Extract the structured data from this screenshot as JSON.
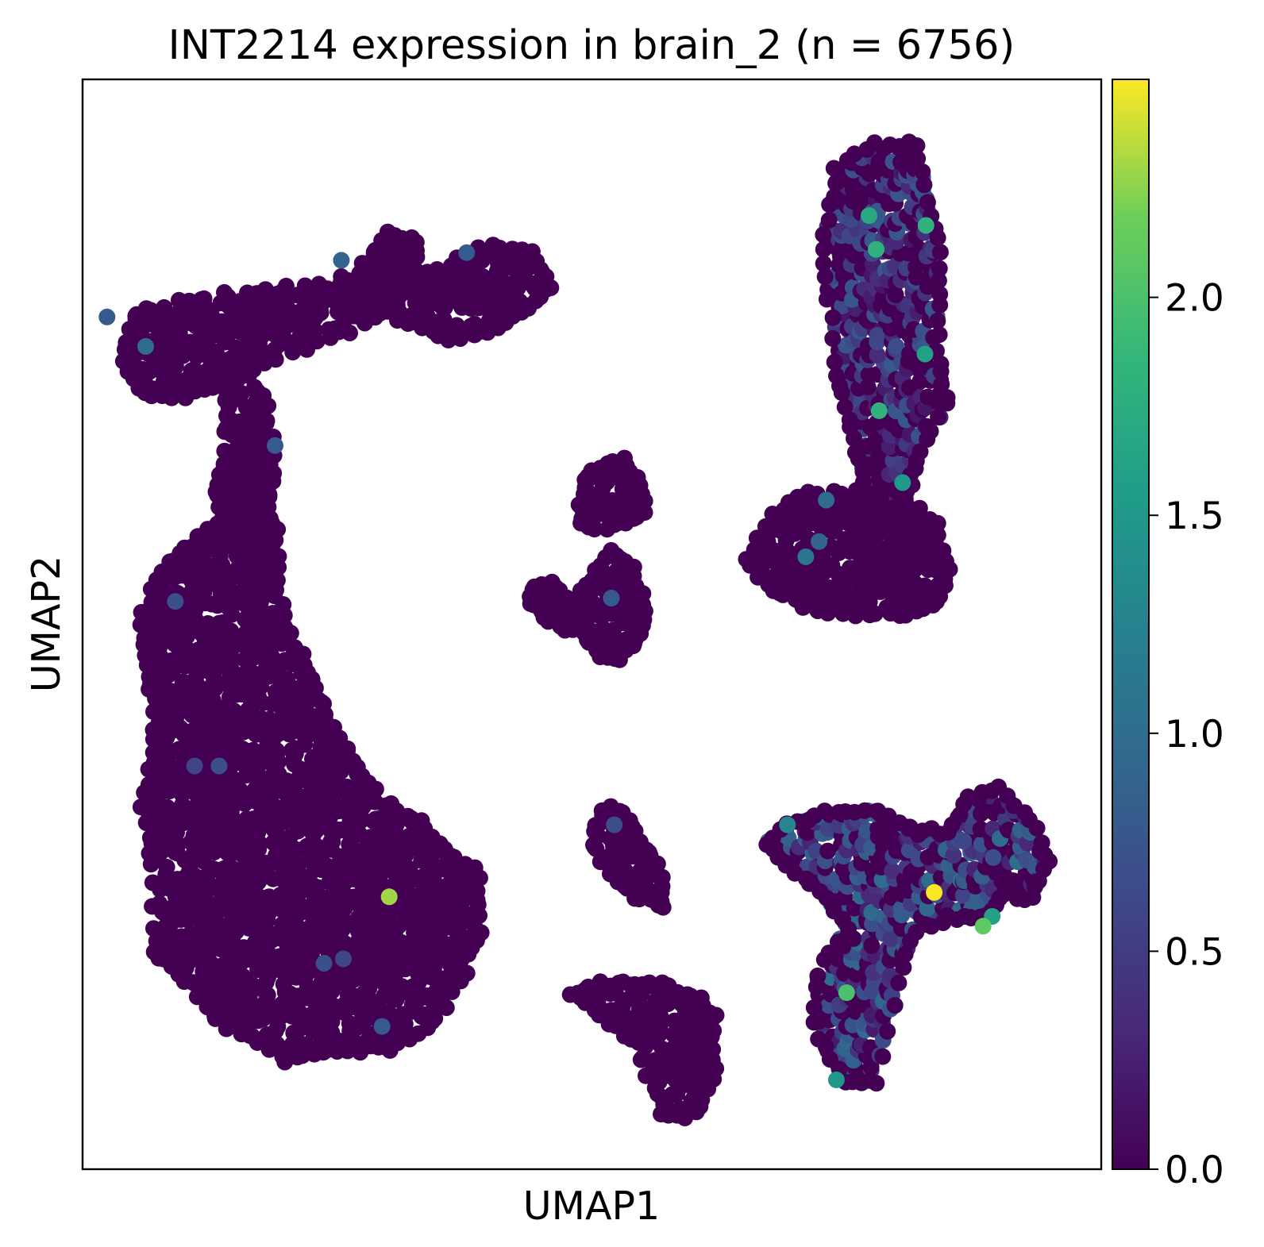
{
  "chart_data": {
    "type": "scatter",
    "title": "INT2214 expression in brain_2 (n = 6756)",
    "xlabel": "UMAP1",
    "ylabel": "UMAP2",
    "x_ticks_shown": false,
    "y_ticks_shown": false,
    "grid": false,
    "colormap": "viridis",
    "colorbar": {
      "min": 0.0,
      "max": 2.5,
      "ticks": [
        0.0,
        0.5,
        1.0,
        1.5,
        2.0
      ],
      "tick_labels": [
        "0.0",
        "0.5",
        "1.0",
        "1.5",
        "2.0"
      ],
      "placement": "right"
    },
    "xlim": [
      0,
      100
    ],
    "ylim": [
      0,
      100
    ],
    "point_color_zero": "#440154",
    "clusters": [
      {
        "id": "left-crescent",
        "outline": [
          [
            7,
            20
          ],
          [
            10,
            17
          ],
          [
            14,
            13
          ],
          [
            20,
            10
          ],
          [
            25,
            11
          ],
          [
            30,
            11
          ],
          [
            34,
            13
          ],
          [
            37,
            17
          ],
          [
            39,
            22
          ],
          [
            39,
            27
          ],
          [
            36,
            29
          ],
          [
            33,
            32
          ],
          [
            29,
            34
          ],
          [
            27,
            37
          ],
          [
            24,
            42
          ],
          [
            22,
            46
          ],
          [
            20,
            50
          ],
          [
            19,
            54
          ],
          [
            19,
            59
          ],
          [
            17,
            61
          ],
          [
            15,
            60
          ],
          [
            11,
            58
          ],
          [
            8,
            55
          ],
          [
            6,
            51
          ],
          [
            6,
            47
          ],
          [
            7,
            43
          ],
          [
            7,
            38
          ],
          [
            6,
            33
          ],
          [
            7,
            28
          ]
        ],
        "base_value": 0.0
      },
      {
        "id": "top-left-branch",
        "outline": [
          [
            4,
            74
          ],
          [
            5,
            78
          ],
          [
            7,
            79
          ],
          [
            12,
            80
          ],
          [
            20,
            81
          ],
          [
            27,
            82
          ],
          [
            30,
            86
          ],
          [
            33,
            85
          ],
          [
            32,
            81
          ],
          [
            29,
            78
          ],
          [
            23,
            76
          ],
          [
            18,
            74
          ],
          [
            14,
            72
          ],
          [
            10,
            71
          ],
          [
            6,
            71
          ]
        ],
        "base_value": 0.0
      },
      {
        "id": "top-mid-blob",
        "outline": [
          [
            26,
            80
          ],
          [
            31,
            78
          ],
          [
            36,
            76
          ],
          [
            41,
            77
          ],
          [
            44,
            79
          ],
          [
            46,
            81
          ],
          [
            44,
            84
          ],
          [
            40,
            85
          ],
          [
            36,
            83
          ],
          [
            32,
            82
          ],
          [
            29,
            81
          ]
        ],
        "base_value": 0.0
      },
      {
        "id": "connector-neck",
        "outline": [
          [
            14,
            58
          ],
          [
            16,
            58
          ],
          [
            18,
            60
          ],
          [
            19,
            64
          ],
          [
            18,
            70
          ],
          [
            16,
            74
          ],
          [
            14,
            72
          ],
          [
            14,
            66
          ],
          [
            13,
            62
          ]
        ],
        "base_value": 0.0
      },
      {
        "id": "center-small-top",
        "outline": [
          [
            49,
            59
          ],
          [
            52,
            59
          ],
          [
            55,
            60
          ],
          [
            55,
            63
          ],
          [
            53,
            65
          ],
          [
            50,
            64
          ],
          [
            49,
            62
          ]
        ],
        "base_value": 0.0
      },
      {
        "id": "center-triangle",
        "outline": [
          [
            44,
            52
          ],
          [
            46,
            50
          ],
          [
            49,
            49
          ],
          [
            51,
            47
          ],
          [
            53,
            47
          ],
          [
            55,
            49
          ],
          [
            55,
            52
          ],
          [
            54,
            55
          ],
          [
            52,
            57
          ],
          [
            50,
            54
          ],
          [
            48,
            52
          ],
          [
            46,
            54
          ],
          [
            44,
            53
          ]
        ],
        "base_value": 0.0
      },
      {
        "id": "center-lower-chain",
        "outline": [
          [
            50,
            30
          ],
          [
            52,
            27
          ],
          [
            54,
            25
          ],
          [
            57,
            24
          ],
          [
            57,
            27
          ],
          [
            55,
            30
          ],
          [
            53,
            33
          ],
          [
            51,
            33
          ]
        ],
        "base_value": 0.0
      },
      {
        "id": "bottom-center-blob",
        "outline": [
          [
            48,
            16
          ],
          [
            51,
            14
          ],
          [
            54,
            12
          ],
          [
            57,
            5
          ],
          [
            60,
            5
          ],
          [
            62,
            8
          ],
          [
            62,
            14
          ],
          [
            60,
            16
          ],
          [
            57,
            17
          ],
          [
            54,
            17
          ],
          [
            51,
            17
          ]
        ],
        "base_value": 0.0
      },
      {
        "id": "right-upper-column",
        "outline": [
          [
            74,
            74
          ],
          [
            75,
            70
          ],
          [
            76,
            66
          ],
          [
            77,
            62
          ],
          [
            76,
            57
          ],
          [
            78,
            55
          ],
          [
            81,
            57
          ],
          [
            81,
            62
          ],
          [
            82,
            66
          ],
          [
            85,
            70
          ],
          [
            84,
            74
          ],
          [
            84,
            79
          ],
          [
            84,
            84
          ],
          [
            83,
            89
          ],
          [
            82,
            94
          ],
          [
            78,
            94
          ],
          [
            74,
            92
          ],
          [
            73,
            87
          ],
          [
            73,
            82
          ]
        ],
        "base_value": 0.4
      },
      {
        "id": "right-mid-blob",
        "outline": [
          [
            65,
            56
          ],
          [
            68,
            60
          ],
          [
            71,
            62
          ],
          [
            76,
            62
          ],
          [
            80,
            62
          ],
          [
            84,
            59
          ],
          [
            85,
            55
          ],
          [
            84,
            52
          ],
          [
            81,
            51
          ],
          [
            77,
            51
          ],
          [
            72,
            51
          ],
          [
            68,
            53
          ]
        ],
        "base_value": 0.0
      },
      {
        "id": "right-lower-network",
        "outline": [
          [
            67,
            30
          ],
          [
            70,
            32
          ],
          [
            74,
            33
          ],
          [
            78,
            33
          ],
          [
            82,
            31
          ],
          [
            85,
            31
          ],
          [
            87,
            34
          ],
          [
            90,
            35
          ],
          [
            93,
            32
          ],
          [
            95,
            28
          ],
          [
            93,
            25
          ],
          [
            90,
            25
          ],
          [
            88,
            23
          ],
          [
            85,
            23
          ],
          [
            82,
            22
          ],
          [
            80,
            17
          ],
          [
            78,
            8
          ],
          [
            75,
            8
          ],
          [
            72,
            12
          ],
          [
            72,
            18
          ],
          [
            75,
            22
          ],
          [
            73,
            25
          ],
          [
            70,
            27
          ]
        ],
        "base_value": 0.5
      }
    ],
    "highlight_points": [
      {
        "x": 30.1,
        "y": 25.0,
        "value": 2.3
      },
      {
        "x": 83.6,
        "y": 25.4,
        "value": 2.5
      },
      {
        "x": 75.0,
        "y": 16.2,
        "value": 2.0
      },
      {
        "x": 88.4,
        "y": 22.3,
        "value": 2.1
      },
      {
        "x": 78.2,
        "y": 69.6,
        "value": 1.8
      },
      {
        "x": 82.8,
        "y": 86.6,
        "value": 1.8
      },
      {
        "x": 77.2,
        "y": 87.5,
        "value": 1.7
      },
      {
        "x": 77.9,
        "y": 84.4,
        "value": 1.8
      },
      {
        "x": 89.3,
        "y": 23.2,
        "value": 1.6
      },
      {
        "x": 74.0,
        "y": 8.2,
        "value": 1.5
      },
      {
        "x": 82.7,
        "y": 74.8,
        "value": 1.6
      },
      {
        "x": 80.5,
        "y": 63.0,
        "value": 1.5
      },
      {
        "x": 69.2,
        "y": 31.6,
        "value": 1.3
      },
      {
        "x": 2.4,
        "y": 78.2,
        "value": 0.8
      },
      {
        "x": 6.2,
        "y": 75.5,
        "value": 1.0
      },
      {
        "x": 18.9,
        "y": 66.4,
        "value": 0.8
      },
      {
        "x": 25.4,
        "y": 83.4,
        "value": 0.9
      },
      {
        "x": 37.7,
        "y": 84.1,
        "value": 0.8
      },
      {
        "x": 9.1,
        "y": 52.1,
        "value": 0.7
      },
      {
        "x": 11.0,
        "y": 37.0,
        "value": 0.6
      },
      {
        "x": 13.4,
        "y": 37.0,
        "value": 0.7
      },
      {
        "x": 23.7,
        "y": 18.9,
        "value": 0.7
      },
      {
        "x": 25.6,
        "y": 19.3,
        "value": 0.6
      },
      {
        "x": 29.4,
        "y": 13.1,
        "value": 0.8
      },
      {
        "x": 51.9,
        "y": 52.4,
        "value": 0.8
      },
      {
        "x": 52.2,
        "y": 31.6,
        "value": 0.7
      },
      {
        "x": 72.3,
        "y": 57.6,
        "value": 0.9
      },
      {
        "x": 71.0,
        "y": 56.2,
        "value": 1.1
      },
      {
        "x": 73.0,
        "y": 61.4,
        "value": 1.0
      },
      {
        "x": 86.5,
        "y": 30.1,
        "value": 0.6
      },
      {
        "x": 89.4,
        "y": 28.6,
        "value": 0.7
      }
    ]
  }
}
